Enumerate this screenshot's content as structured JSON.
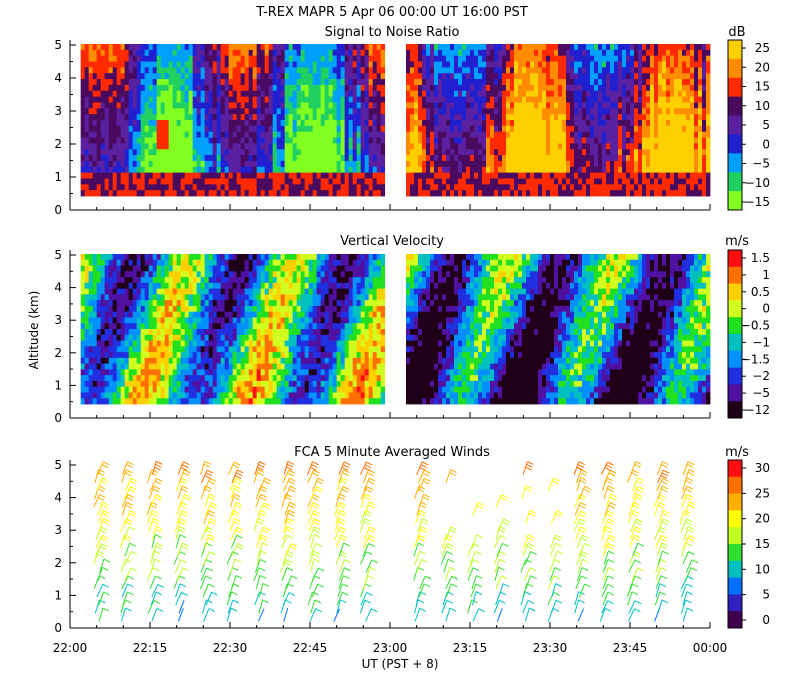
{
  "header": {
    "title": "T-REX   MAPR   5 Apr 06   00:00 UT   16:00   PST"
  },
  "x_axis": {
    "label": "UT  (PST + 8)",
    "ticks": [
      {
        "t": 0,
        "label": "22:00"
      },
      {
        "t": 15,
        "label": "22:15"
      },
      {
        "t": 30,
        "label": "22:30"
      },
      {
        "t": 45,
        "label": "22:45"
      },
      {
        "t": 60,
        "label": "23:00"
      },
      {
        "t": 75,
        "label": "23:15"
      },
      {
        "t": 90,
        "label": "23:30"
      },
      {
        "t": 105,
        "label": "23:45"
      },
      {
        "t": 120,
        "label": "00:00"
      }
    ]
  },
  "y_axis": {
    "label": "Altitude (km)",
    "ticks": [
      "0",
      "1",
      "2",
      "3",
      "4",
      "5"
    ]
  },
  "chart_data": [
    {
      "type": "heatmap",
      "title": "Signal to Noise Ratio",
      "units": "dB",
      "xlim_minutes": [
        0,
        120
      ],
      "ylim": [
        0,
        5
      ],
      "data_gap_minutes": [
        59,
        63
      ],
      "colorbar": {
        "labels": [
          "25",
          "20",
          "15",
          "10",
          "5",
          "0",
          "−5",
          "−10",
          "−15"
        ],
        "colors": [
          "#ffd000",
          "#ff8c00",
          "#ff2a00",
          "#4a0a60",
          "#5a20a0",
          "#2020d0",
          "#00a0ff",
          "#20d060",
          "#80ff20"
        ]
      }
    },
    {
      "type": "heatmap",
      "title": "Vertical Velocity",
      "units": "m/s",
      "xlim_minutes": [
        0,
        120
      ],
      "ylim": [
        0,
        5
      ],
      "data_gap_minutes": [
        59,
        63
      ],
      "colorbar": {
        "labels": [
          "1.5",
          "1",
          "0.5",
          "0",
          "−0.5",
          "−1",
          "−1.5",
          "−2",
          "−5",
          "−12"
        ],
        "colors": [
          "#ff1010",
          "#ff7000",
          "#ffd000",
          "#d0ff20",
          "#20e020",
          "#00c0c0",
          "#0090ff",
          "#2030e0",
          "#5010a0",
          "#200018"
        ]
      }
    },
    {
      "type": "scatter",
      "title": "FCA 5 Minute Averaged Winds",
      "units": "m/s",
      "glyph": "wind barbs",
      "xlim_minutes": [
        0,
        120
      ],
      "ylim": [
        0,
        5
      ],
      "colorbar": {
        "labels": [
          "30",
          "25",
          "20",
          "15",
          "10",
          "5",
          "0"
        ],
        "colors": [
          "#ff1010",
          "#ff7000",
          "#ffb000",
          "#ffff00",
          "#c0ff20",
          "#30e030",
          "#00c0c0",
          "#0070ff",
          "#3020c0",
          "#400050"
        ]
      }
    }
  ]
}
